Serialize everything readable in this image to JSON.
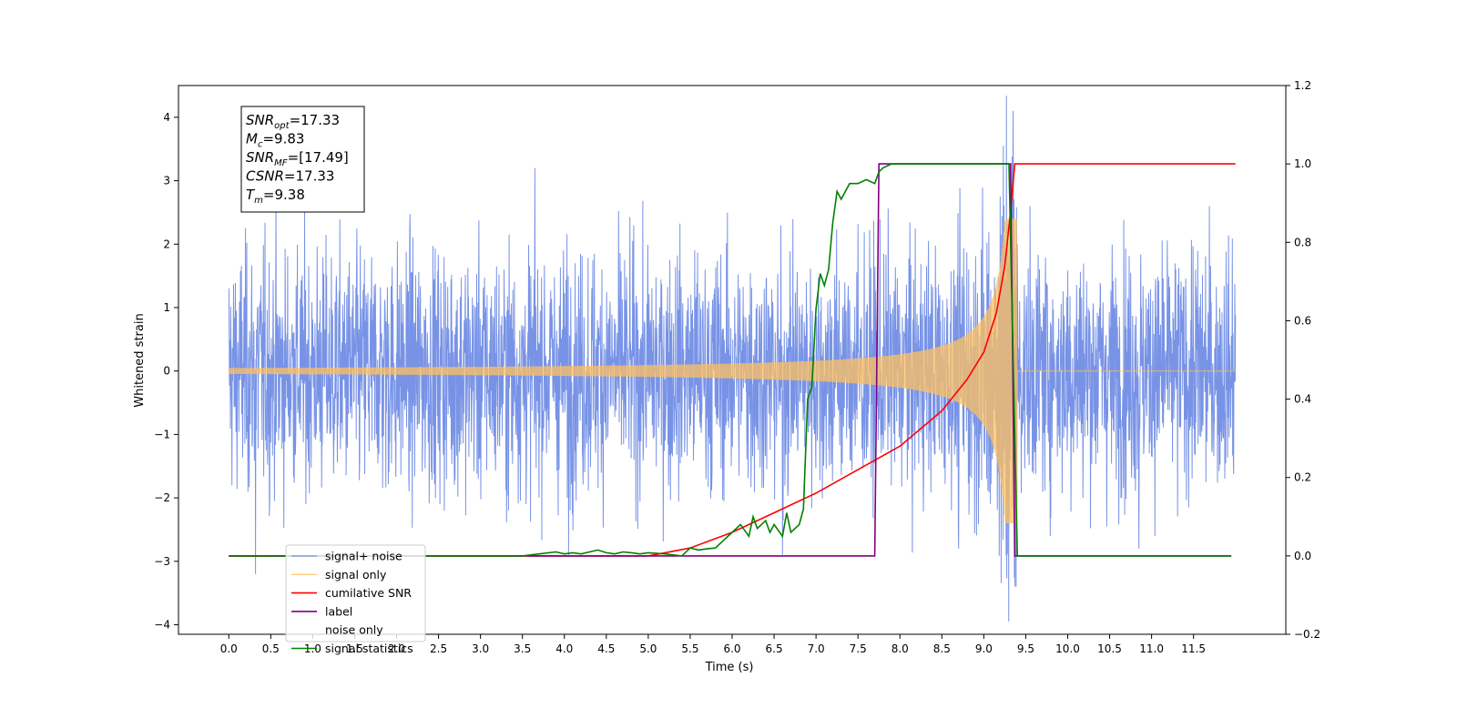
{
  "chart_data": {
    "type": "line",
    "xlabel": "Time (s)",
    "ylabel": "Whitened strain",
    "xlim": [
      -0.6,
      12.6
    ],
    "ylim": [
      -4.15,
      4.5
    ],
    "y2lim": [
      -0.2,
      1.2
    ],
    "x_ticks": [
      "0.0",
      "0.5",
      "1.0",
      "1.5",
      "2.0",
      "2.5",
      "3.0",
      "3.5",
      "4.0",
      "4.5",
      "5.0",
      "5.5",
      "6.0",
      "6.5",
      "7.0",
      "7.5",
      "8.0",
      "8.5",
      "9.0",
      "9.5",
      "10.0",
      "10.5",
      "11.0",
      "11.5"
    ],
    "y_ticks": [
      "4",
      "3",
      "2",
      "1",
      "0",
      "−1",
      "−2",
      "−3",
      "−4"
    ],
    "y2_ticks": [
      "1.2",
      "1.0",
      "0.8",
      "0.6",
      "0.4",
      "0.2",
      "0.0",
      "−0.2"
    ],
    "grid": false,
    "legend_position": "lower-left",
    "annotation": {
      "lines": [
        {
          "sym": "SNR",
          "sub": "opt",
          "val": "=17.33"
        },
        {
          "sym": "M",
          "sub": "c",
          "val": "=9.83"
        },
        {
          "sym": "SNR",
          "sub": "MF",
          "val": "=[17.49]"
        },
        {
          "sym": "CSNR",
          "sub": "",
          "val": "=17.33"
        },
        {
          "sym": "T",
          "sub": "m",
          "val": "=9.38"
        }
      ]
    },
    "series": [
      {
        "name": "signal+ noise",
        "color": "#7893e6",
        "axis": "left",
        "kind": "noise",
        "x_range": [
          0.0,
          12.0
        ],
        "rms": 0.95,
        "spikes": [
          [
            0.32,
            -3.2
          ],
          [
            9.35,
            4.1
          ],
          [
            3.65,
            3.2
          ],
          [
            4.05,
            -2.9
          ],
          [
            6.6,
            -2.9
          ],
          [
            10.85,
            -2.8
          ],
          [
            8.7,
            -2.8
          ]
        ]
      },
      {
        "name": "signal only",
        "color": "#ffc060",
        "axis": "left",
        "kind": "chirp",
        "x_range": [
          0.0,
          12.0
        ],
        "merger_time": 9.37
      },
      {
        "name": "cumilative SNR",
        "color": "#ff0000",
        "axis": "right",
        "x": [
          0.0,
          5.0,
          5.5,
          6.0,
          6.5,
          7.0,
          7.5,
          8.0,
          8.5,
          8.8,
          9.0,
          9.15,
          9.25,
          9.32,
          9.37,
          12.0
        ],
        "y": [
          0.0,
          0.0,
          0.02,
          0.06,
          0.11,
          0.16,
          0.22,
          0.28,
          0.37,
          0.45,
          0.52,
          0.62,
          0.74,
          0.88,
          1.0,
          1.0
        ]
      },
      {
        "name": "label",
        "color": "#800080",
        "axis": "right",
        "x": [
          0.0,
          7.7,
          7.75,
          9.32,
          9.37,
          11.95
        ],
        "y": [
          0.0,
          0.0,
          1.0,
          1.0,
          0.0,
          0.0
        ]
      },
      {
        "name": "noise only",
        "color": "#ffffff",
        "axis": "right",
        "kind": "hidden",
        "x": [],
        "y": []
      },
      {
        "name": "signal statistics",
        "color": "#008000",
        "axis": "right",
        "x": [
          0.0,
          3.0,
          3.5,
          3.7,
          3.9,
          4.0,
          4.1,
          4.2,
          4.3,
          4.4,
          4.5,
          4.6,
          4.7,
          4.8,
          4.9,
          5.0,
          5.2,
          5.4,
          5.5,
          5.6,
          5.7,
          5.8,
          5.9,
          6.0,
          6.1,
          6.2,
          6.25,
          6.3,
          6.4,
          6.45,
          6.5,
          6.6,
          6.65,
          6.7,
          6.8,
          6.85,
          6.9,
          6.95,
          7.0,
          7.05,
          7.1,
          7.15,
          7.2,
          7.25,
          7.3,
          7.35,
          7.4,
          7.5,
          7.6,
          7.7,
          7.75,
          7.8,
          7.9,
          8.0,
          8.2,
          8.5,
          9.0,
          9.3,
          9.35,
          9.4,
          9.45,
          11.95
        ],
        "y": [
          0.0,
          0.0,
          0.0,
          0.005,
          0.01,
          0.005,
          0.008,
          0.005,
          0.01,
          0.015,
          0.008,
          0.005,
          0.01,
          0.008,
          0.005,
          0.008,
          0.005,
          0.0,
          0.02,
          0.015,
          0.018,
          0.02,
          0.04,
          0.06,
          0.08,
          0.05,
          0.1,
          0.07,
          0.09,
          0.06,
          0.08,
          0.05,
          0.11,
          0.06,
          0.08,
          0.12,
          0.4,
          0.43,
          0.63,
          0.72,
          0.69,
          0.73,
          0.85,
          0.93,
          0.91,
          0.93,
          0.95,
          0.95,
          0.96,
          0.95,
          0.98,
          0.99,
          1.0,
          1.0,
          1.0,
          1.0,
          1.0,
          1.0,
          0.5,
          0.0,
          0.0,
          0.0
        ]
      }
    ]
  }
}
